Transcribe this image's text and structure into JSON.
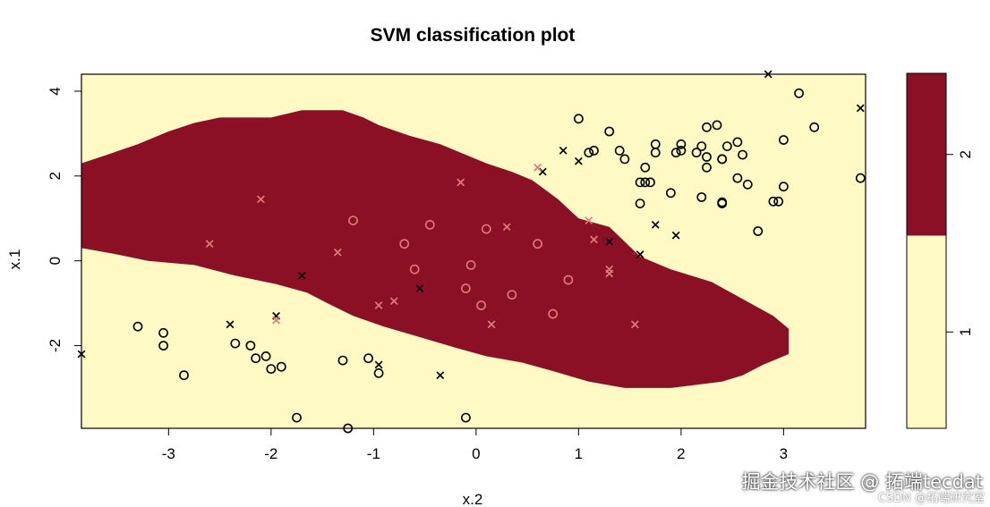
{
  "chart_data": {
    "type": "scatter",
    "title": "SVM classification plot",
    "xlabel": "x.2",
    "ylabel": "x.1",
    "xlim": [
      -3.85,
      3.8
    ],
    "ylim": [
      -3.95,
      4.4
    ],
    "xticks": [
      -3,
      -2,
      -1,
      0,
      1,
      2,
      3
    ],
    "yticks": [
      -2,
      0,
      2,
      4
    ],
    "grid": false,
    "background_color": "#FFFAC4",
    "region_color": "#8B1026",
    "region_polygon": [
      [
        -3.85,
        2.3
      ],
      [
        -3.6,
        2.5
      ],
      [
        -3.3,
        2.75
      ],
      [
        -3.0,
        3.05
      ],
      [
        -2.75,
        3.25
      ],
      [
        -2.5,
        3.38
      ],
      [
        -2.0,
        3.38
      ],
      [
        -1.7,
        3.55
      ],
      [
        -1.3,
        3.55
      ],
      [
        -1.1,
        3.38
      ],
      [
        -0.95,
        3.2
      ],
      [
        -0.65,
        2.95
      ],
      [
        -0.35,
        2.75
      ],
      [
        -0.1,
        2.5
      ],
      [
        0.1,
        2.3
      ],
      [
        0.35,
        2.1
      ],
      [
        0.55,
        1.9
      ],
      [
        0.8,
        1.45
      ],
      [
        1.0,
        1.0
      ],
      [
        1.3,
        0.8
      ],
      [
        1.6,
        0.1
      ],
      [
        1.9,
        -0.2
      ],
      [
        2.3,
        -0.5
      ],
      [
        2.6,
        -0.9
      ],
      [
        2.9,
        -1.3
      ],
      [
        3.05,
        -1.6
      ],
      [
        3.05,
        -2.2
      ],
      [
        2.8,
        -2.45
      ],
      [
        2.6,
        -2.7
      ],
      [
        2.4,
        -2.85
      ],
      [
        1.9,
        -3.0
      ],
      [
        1.45,
        -3.0
      ],
      [
        1.1,
        -2.85
      ],
      [
        0.75,
        -2.6
      ],
      [
        0.45,
        -2.4
      ],
      [
        0.1,
        -2.25
      ],
      [
        -0.2,
        -2.05
      ],
      [
        -0.55,
        -1.8
      ],
      [
        -0.9,
        -1.55
      ],
      [
        -1.2,
        -1.3
      ],
      [
        -1.45,
        -1.0
      ],
      [
        -1.65,
        -0.75
      ],
      [
        -1.95,
        -0.55
      ],
      [
        -2.35,
        -0.35
      ],
      [
        -2.75,
        -0.1
      ],
      [
        -3.2,
        0.0
      ],
      [
        -3.5,
        0.15
      ],
      [
        -3.85,
        0.3
      ]
    ],
    "legend": {
      "levels": [
        "1",
        "2"
      ],
      "colors": [
        "#FFFAC4",
        "#8B1026"
      ],
      "placement": "right"
    },
    "series": [
      {
        "symbol": "o",
        "color": "#000000",
        "points": [
          [
            1.0,
            3.35
          ],
          [
            1.3,
            3.05
          ],
          [
            1.15,
            2.6
          ],
          [
            1.1,
            2.55
          ],
          [
            1.4,
            2.6
          ],
          [
            1.45,
            2.4
          ],
          [
            1.75,
            2.75
          ],
          [
            1.75,
            2.55
          ],
          [
            1.65,
            2.2
          ],
          [
            1.6,
            1.85
          ],
          [
            1.65,
            1.85
          ],
          [
            1.7,
            1.85
          ],
          [
            1.6,
            1.35
          ],
          [
            1.9,
            1.6
          ],
          [
            1.95,
            2.55
          ],
          [
            2.0,
            2.6
          ],
          [
            2.0,
            2.75
          ],
          [
            2.15,
            2.55
          ],
          [
            2.2,
            2.7
          ],
          [
            2.25,
            2.45
          ],
          [
            2.25,
            2.2
          ],
          [
            2.35,
            3.2
          ],
          [
            2.4,
            2.4
          ],
          [
            2.4,
            2.4
          ],
          [
            2.45,
            2.7
          ],
          [
            2.55,
            2.8
          ],
          [
            2.6,
            2.5
          ],
          [
            2.55,
            1.95
          ],
          [
            2.65,
            1.8
          ],
          [
            2.2,
            1.5
          ],
          [
            2.4,
            1.35
          ],
          [
            2.4,
            1.38
          ],
          [
            2.25,
            3.15
          ],
          [
            2.9,
            1.4
          ],
          [
            2.95,
            1.4
          ],
          [
            3.0,
            1.75
          ],
          [
            3.0,
            2.85
          ],
          [
            3.15,
            3.95
          ],
          [
            3.3,
            3.15
          ],
          [
            3.75,
            1.95
          ],
          [
            2.75,
            0.7
          ],
          [
            -3.3,
            -1.55
          ],
          [
            -3.05,
            -1.7
          ],
          [
            -3.05,
            -2.0
          ],
          [
            -2.85,
            -2.7
          ],
          [
            -2.35,
            -1.95
          ],
          [
            -2.2,
            -2.0
          ],
          [
            -2.15,
            -2.3
          ],
          [
            -2.05,
            -2.25
          ],
          [
            -2.0,
            -2.55
          ],
          [
            -1.9,
            -2.5
          ],
          [
            -1.3,
            -2.35
          ],
          [
            -1.05,
            -2.3
          ],
          [
            -0.95,
            -2.65
          ],
          [
            -1.75,
            -3.7
          ],
          [
            -1.25,
            -3.95
          ],
          [
            -0.1,
            -3.7
          ]
        ]
      },
      {
        "symbol": "x",
        "color": "#000000",
        "points": [
          [
            2.85,
            4.4
          ],
          [
            3.75,
            3.6
          ],
          [
            0.85,
            2.6
          ],
          [
            1.0,
            2.35
          ],
          [
            0.65,
            2.1
          ],
          [
            1.75,
            0.85
          ],
          [
            1.95,
            0.6
          ],
          [
            1.3,
            0.45
          ],
          [
            1.6,
            0.15
          ],
          [
            -1.7,
            -0.35
          ],
          [
            -0.55,
            -0.65
          ],
          [
            -2.4,
            -1.5
          ],
          [
            -1.95,
            -1.3
          ],
          [
            -0.95,
            -2.45
          ],
          [
            -0.35,
            -2.7
          ],
          [
            -3.85,
            -2.2
          ]
        ]
      },
      {
        "symbol": "o",
        "color": "#E07A7A",
        "points": [
          [
            -1.2,
            0.95
          ],
          [
            -0.45,
            0.85
          ],
          [
            -0.7,
            0.4
          ],
          [
            -0.6,
            -0.2
          ],
          [
            -0.05,
            -0.1
          ],
          [
            0.1,
            0.75
          ],
          [
            0.6,
            0.4
          ],
          [
            -0.1,
            -0.65
          ],
          [
            0.05,
            -1.05
          ],
          [
            0.35,
            -0.8
          ],
          [
            0.75,
            -1.25
          ],
          [
            0.9,
            -0.45
          ]
        ]
      },
      {
        "symbol": "x",
        "color": "#E07A7A",
        "points": [
          [
            -2.1,
            1.45
          ],
          [
            -2.6,
            0.4
          ],
          [
            -1.35,
            0.2
          ],
          [
            -0.15,
            1.85
          ],
          [
            0.3,
            0.8
          ],
          [
            0.6,
            2.2
          ],
          [
            1.1,
            0.95
          ],
          [
            1.15,
            0.5
          ],
          [
            1.3,
            -0.2
          ],
          [
            1.3,
            -0.3
          ],
          [
            -0.8,
            -0.95
          ],
          [
            -0.95,
            -1.05
          ],
          [
            -1.95,
            -1.4
          ],
          [
            0.15,
            -1.5
          ],
          [
            1.55,
            -1.5
          ]
        ]
      }
    ]
  },
  "watermark": {
    "main": "掘金技术社区 @ 拓端tecdat",
    "sub": "CSDN @拓端研究室"
  }
}
